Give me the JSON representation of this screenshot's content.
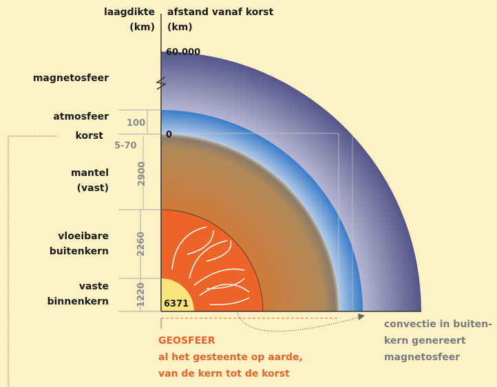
{
  "header": {
    "thickness_label": [
      "laagdikte",
      "(km)"
    ],
    "distance_label": [
      "afstand vanaf korst",
      "(km)"
    ]
  },
  "layers": [
    {
      "name": [
        "magnetosfeer"
      ]
    },
    {
      "name": [
        "atmosfeer"
      ],
      "thickness": "100"
    },
    {
      "name": [
        "korst"
      ],
      "thickness": "5-70"
    },
    {
      "name": [
        "mantel",
        "(vast)"
      ],
      "thickness": "2900"
    },
    {
      "name": [
        "vloeibare",
        "buitenkern"
      ],
      "thickness": "2260"
    },
    {
      "name": [
        "vaste",
        "binnenkern"
      ],
      "thickness": "1220"
    }
  ],
  "distances": [
    "60.000",
    "0",
    "6371"
  ],
  "geosphere": [
    "GEOSFEER",
    "al het gesteente op aarde,",
    "van de kern tot de korst"
  ],
  "convection": [
    "convectie in buiten-",
    "kern genereert",
    "magnetosfeer"
  ]
}
